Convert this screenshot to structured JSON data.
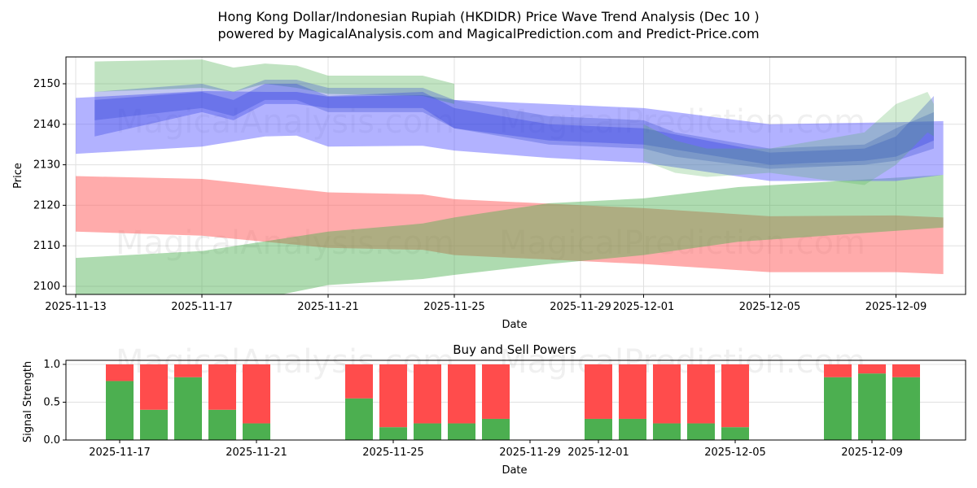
{
  "chart_data": [
    {
      "type": "area",
      "title": "Hong Kong Dollar/Indonesian Rupiah (HKDIDR) Price Wave Trend Analysis (Dec 10 )",
      "subtitle": "powered by MagicalAnalysis.com and MagicalPrediction.com and Predict-Price.com",
      "xlabel": "Date",
      "ylabel": "Price",
      "x_start_date": "2025-11-13",
      "xlim_days": [
        -0.3,
        28.2
      ],
      "ylim": [
        2097.7,
        2156.6
      ],
      "grid": true,
      "x_ticks": [
        {
          "day": 0,
          "label": "2025-11-13"
        },
        {
          "day": 4,
          "label": "2025-11-17"
        },
        {
          "day": 8,
          "label": "2025-11-21"
        },
        {
          "day": 12,
          "label": "2025-11-25"
        },
        {
          "day": 16,
          "label": "2025-11-29"
        },
        {
          "day": 18,
          "label": "2025-12-01"
        },
        {
          "day": 22,
          "label": "2025-12-05"
        },
        {
          "day": 26,
          "label": "2025-12-09"
        }
      ],
      "y_ticks": [
        2100,
        2110,
        2120,
        2130,
        2140,
        2150
      ],
      "bands": [
        {
          "name": "red-band",
          "color": "#ff6666",
          "opacity": 0.55,
          "x": [
            0,
            4,
            8,
            11,
            12,
            18,
            22,
            26,
            27.5
          ],
          "upper": [
            2127.2,
            2126.5,
            2123.2,
            2122.7,
            2121.5,
            2119.3,
            2117.3,
            2117.5,
            2117
          ],
          "lower": [
            2113.5,
            2112.5,
            2109.5,
            2109,
            2107.7,
            2105.5,
            2103.5,
            2103.5,
            2103
          ]
        },
        {
          "name": "green-band",
          "color": "#4caf50",
          "opacity": 0.45,
          "x": [
            0,
            4,
            8,
            11,
            12,
            15,
            18,
            21,
            27.5
          ],
          "upper": [
            2107,
            2108.7,
            2113.5,
            2115.5,
            2117,
            2120.5,
            2121.7,
            2124.5,
            2127.5
          ],
          "lower": [
            2090,
            2094,
            2100.3,
            2101.8,
            2102.8,
            2105.5,
            2107.7,
            2111,
            2114.5
          ]
        },
        {
          "name": "blue-wide-band",
          "color": "#6666ff",
          "opacity": 0.5,
          "x": [
            0,
            4,
            6,
            7,
            8,
            11,
            12,
            15,
            18,
            22,
            26,
            27.5
          ],
          "upper": [
            2146.5,
            2148.2,
            2148,
            2148,
            2146.8,
            2147.2,
            2146,
            2145,
            2144,
            2140,
            2140.5,
            2140.8
          ],
          "lower": [
            2132.7,
            2134.5,
            2137,
            2137.2,
            2134.5,
            2134.7,
            2133.5,
            2131.7,
            2130.5,
            2126,
            2126,
            2127.5
          ]
        },
        {
          "name": "green-top-band",
          "color": "#4caf50",
          "opacity": 0.35,
          "x": [
            0.6,
            4,
            5,
            6,
            7,
            8,
            11,
            12
          ],
          "upper": [
            2155.5,
            2156,
            2154,
            2155,
            2154.5,
            2152,
            2152,
            2150
          ],
          "lower": [
            2148,
            2149,
            2148,
            2150,
            2149,
            2147.5,
            2147,
            2145
          ]
        },
        {
          "name": "blue-mid-band-1",
          "color": "#3344cc",
          "opacity": 0.3,
          "x": [
            0.6,
            4,
            5,
            6,
            7,
            8,
            11,
            12,
            15,
            18,
            19,
            22,
            25,
            26,
            27.2
          ],
          "upper": [
            2148,
            2150,
            2148,
            2151,
            2151,
            2149,
            2149,
            2146,
            2142,
            2141,
            2138,
            2134,
            2135,
            2139,
            2143
          ],
          "lower": [
            2141,
            2144,
            2142,
            2146,
            2146,
            2143,
            2143,
            2139,
            2135,
            2134,
            2132,
            2129,
            2130,
            2131,
            2134
          ]
        },
        {
          "name": "blue-mid-band-2",
          "color": "#2233dd",
          "opacity": 0.3,
          "x": [
            0.6,
            4,
            5,
            6,
            7,
            8,
            11,
            12,
            15,
            18,
            22,
            25,
            26,
            27.2
          ],
          "upper": [
            2146,
            2148,
            2146,
            2150,
            2150,
            2147,
            2148,
            2144,
            2140,
            2139,
            2133,
            2134,
            2137,
            2147
          ],
          "lower": [
            2137,
            2143,
            2141,
            2145,
            2145,
            2144,
            2144,
            2139,
            2136,
            2135,
            2130,
            2131,
            2132,
            2136
          ]
        },
        {
          "name": "green-end-band",
          "color": "#4caf50",
          "opacity": 0.25,
          "x": [
            18,
            19,
            20,
            22,
            25,
            26,
            27,
            27.2
          ],
          "upper": [
            2140,
            2136,
            2134,
            2134,
            2138,
            2145,
            2148,
            2145
          ],
          "lower": [
            2131,
            2128,
            2127,
            2128,
            2125,
            2130,
            2138,
            2137
          ]
        }
      ]
    },
    {
      "type": "bar",
      "title": "Buy and Sell Powers",
      "xlabel": "Date",
      "ylabel": "Signal Strength",
      "ylim": [
        0,
        1.05
      ],
      "y_ticks": [
        "0.0",
        "0.5",
        "1.0"
      ],
      "x_ticks": [
        {
          "day": 4,
          "label": "2025-11-17"
        },
        {
          "day": 8,
          "label": "2025-11-21"
        },
        {
          "day": 12,
          "label": "2025-11-25"
        },
        {
          "day": 16,
          "label": "2025-11-29"
        },
        {
          "day": 18,
          "label": "2025-12-01"
        },
        {
          "day": 22,
          "label": "2025-12-05"
        },
        {
          "day": 26,
          "label": "2025-12-09"
        }
      ],
      "categories": [
        "2025-11-17",
        "2025-11-18",
        "2025-11-19",
        "2025-11-20",
        "2025-11-21",
        "2025-11-24",
        "2025-11-25",
        "2025-11-26",
        "2025-11-27",
        "2025-11-28",
        "2025-12-01",
        "2025-12-02",
        "2025-12-03",
        "2025-12-04",
        "2025-12-05",
        "2025-12-08",
        "2025-12-09",
        "2025-12-10"
      ],
      "days": [
        4,
        5,
        6,
        7,
        8,
        11,
        12,
        13,
        14,
        15,
        18,
        19,
        20,
        21,
        22,
        25,
        26,
        27
      ],
      "series": [
        {
          "name": "Buy",
          "color": "#4caf50",
          "values": [
            0.78,
            0.4,
            0.83,
            0.4,
            0.22,
            0.55,
            0.17,
            0.22,
            0.22,
            0.28,
            0.28,
            0.28,
            0.22,
            0.22,
            0.17,
            0.83,
            0.88,
            0.83
          ]
        },
        {
          "name": "Sell",
          "color": "#ff4c4c",
          "values": [
            0.22,
            0.6,
            0.17,
            0.6,
            0.78,
            0.45,
            0.83,
            0.78,
            0.78,
            0.72,
            0.72,
            0.72,
            0.78,
            0.78,
            0.83,
            0.17,
            0.12,
            0.17
          ]
        }
      ]
    }
  ],
  "watermarks": [
    "MagicalAnalysis.com",
    "MagicalPrediction.com"
  ]
}
